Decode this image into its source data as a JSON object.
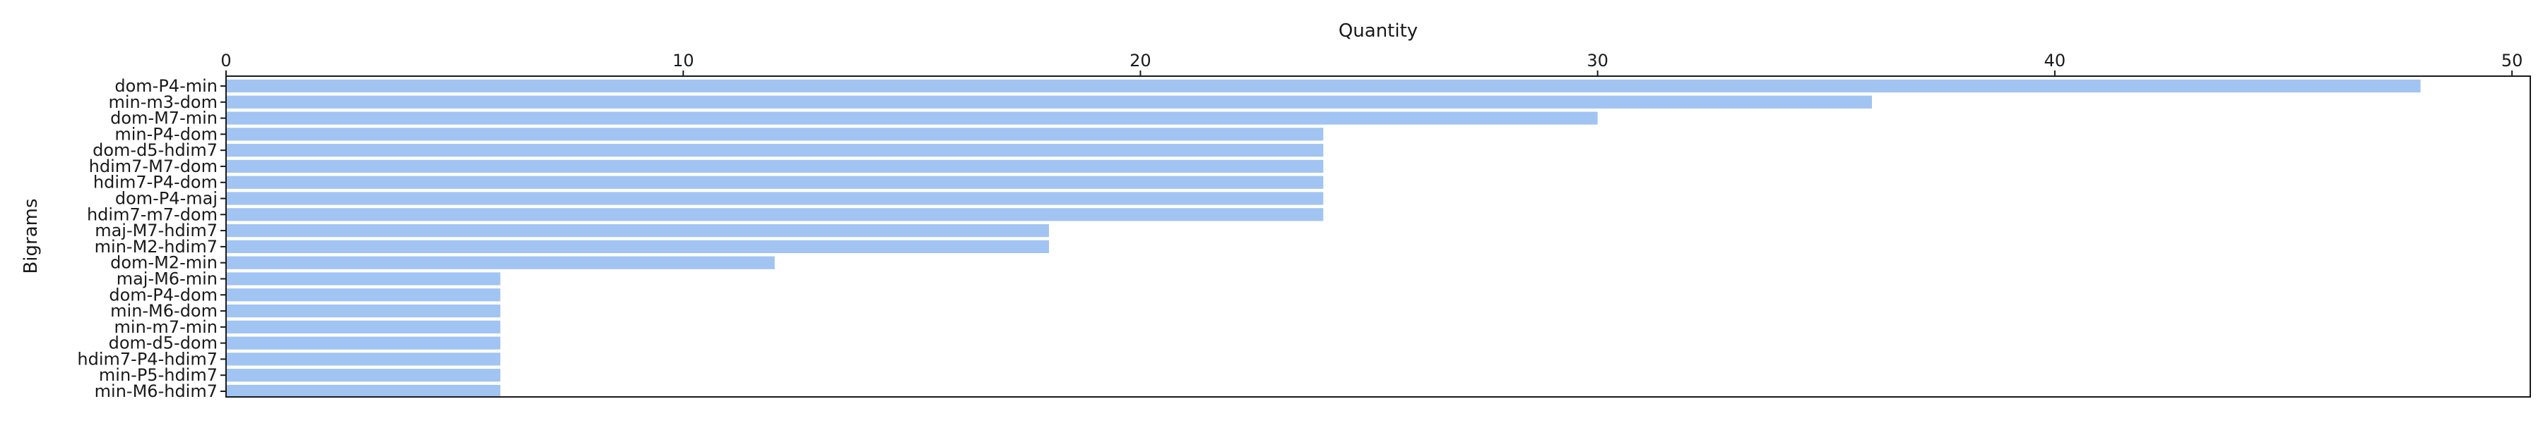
{
  "chart_data": {
    "type": "bar",
    "orientation": "horizontal",
    "title": "",
    "xlabel": "Quantity",
    "ylabel": "Bigrams",
    "xlim": [
      0,
      50.4
    ],
    "xticks": [
      0,
      10,
      20,
      30,
      40,
      50
    ],
    "x_axis_position": "top",
    "grid": false,
    "bar_color": "#a1c4f2",
    "categories": [
      "dom-P4-min",
      "min-m3-dom",
      "dom-M7-min",
      "min-P4-dom",
      "dom-d5-hdim7",
      "hdim7-M7-dom",
      "hdim7-P4-dom",
      "dom-P4-maj",
      "hdim7-m7-dom",
      "maj-M7-hdim7",
      "min-M2-hdim7",
      "dom-M2-min",
      "maj-M6-min",
      "dom-P4-dom",
      "min-M6-dom",
      "min-m7-min",
      "dom-d5-dom",
      "hdim7-P4-hdim7",
      "min-P5-hdim7",
      "min-M6-hdim7"
    ],
    "values": [
      48,
      36,
      30,
      24,
      24,
      24,
      24,
      24,
      24,
      18,
      18,
      12,
      6,
      6,
      6,
      6,
      6,
      6,
      6,
      6
    ]
  }
}
